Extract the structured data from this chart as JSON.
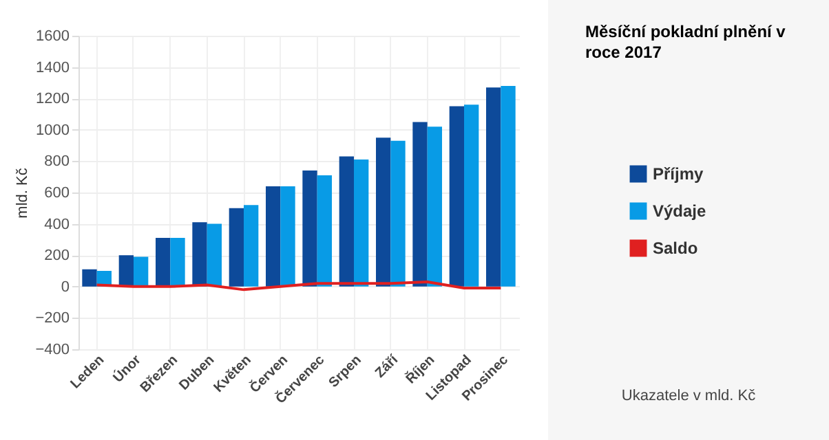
{
  "chart_data": {
    "type": "bar",
    "title": "Měsíční pokladní plnění v roce 2017",
    "ylabel": "mld. Kč",
    "categories": [
      "Leden",
      "Únor",
      "Březen",
      "Duben",
      "Květen",
      "Červen",
      "Červenec",
      "Srpen",
      "Září",
      "Říjen",
      "Listopad",
      "Prosinec"
    ],
    "series": [
      {
        "name": "Příjmy",
        "color": "#0d4a9a",
        "values": [
          110,
          200,
          310,
          410,
          500,
          640,
          740,
          830,
          950,
          1050,
          1150,
          1270
        ]
      },
      {
        "name": "Výdaje",
        "color": "#089be6",
        "values": [
          100,
          190,
          310,
          400,
          520,
          640,
          710,
          810,
          930,
          1020,
          1160,
          1280
        ]
      },
      {
        "name": "Saldo",
        "color": "#e02020",
        "type": "line",
        "values": [
          10,
          0,
          0,
          10,
          -20,
          0,
          20,
          20,
          20,
          30,
          -10,
          -10
        ]
      }
    ],
    "ylim": [
      -400,
      1600
    ],
    "yticks": [
      -400,
      -200,
      0,
      200,
      400,
      600,
      800,
      1000,
      1200,
      1400,
      1600
    ],
    "grid": true,
    "legend": "right",
    "annotations": [
      "Ukazatele v mld. Kč"
    ]
  }
}
